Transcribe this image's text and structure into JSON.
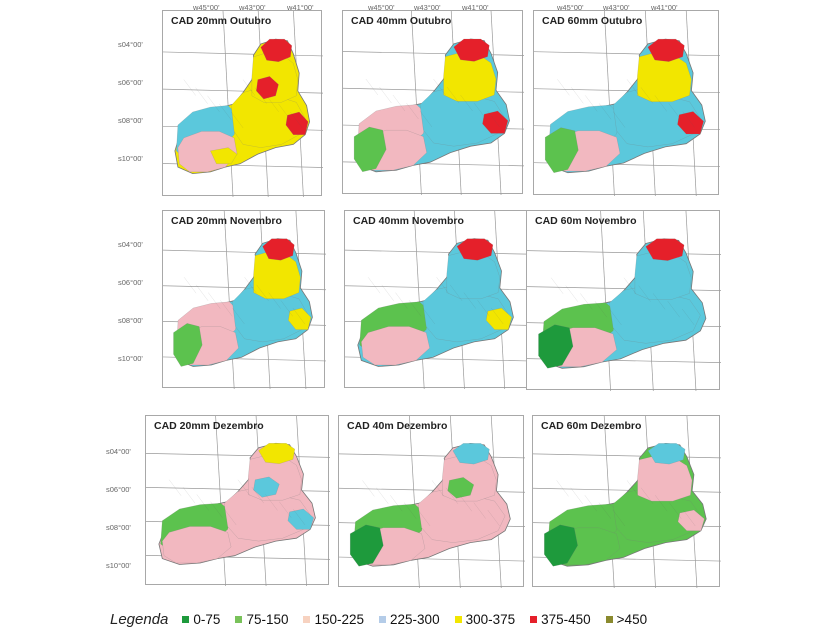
{
  "classes": [
    {
      "label": "0-75",
      "color": "#1e9a3c"
    },
    {
      "label": "75-150",
      "color": "#5cc24e"
    },
    {
      "label": "150-225",
      "color": "#f2b8c0"
    },
    {
      "label": "225-300",
      "color": "#5bc8dc"
    },
    {
      "label": "300-375",
      "color": "#f2e600"
    },
    {
      "label": "375-450",
      "color": "#e5202a"
    },
    {
      "label": ">450",
      "color": "#8a8a2e"
    }
  ],
  "legend": {
    "title": "Legenda",
    "items": [
      {
        "label": "0-75",
        "swatch_color": "#1e9a3c"
      },
      {
        "label": "75-150",
        "swatch_color": "#79c25a"
      },
      {
        "label": "150-225",
        "swatch_color": "#f7d2c0"
      },
      {
        "label": "225-300",
        "swatch_color": "#b4cce8"
      },
      {
        "label": "300-375",
        "swatch_color": "#f2e600"
      },
      {
        "label": "375-450",
        "swatch_color": "#e5202a"
      },
      {
        "label": ">450",
        "swatch_color": "#8a8a2e"
      }
    ]
  },
  "coordinates": {
    "longitudes": [
      "w45°00'",
      "w43°00'",
      "w41°00'"
    ],
    "latitudes": [
      "s04°00'",
      "s06°00'",
      "s08°00'",
      "s10°00'"
    ]
  },
  "panels": [
    {
      "title": "CAD 20mm   Outubro",
      "dominant": "300-375",
      "regions": [
        {
          "shape": "west",
          "class": "225-300"
        },
        {
          "shape": "southcore",
          "class": "150-225"
        },
        {
          "shape": "center",
          "class": "300-375"
        },
        {
          "shape": "north",
          "class": "300-375"
        },
        {
          "shape": "tip",
          "class": "375-450"
        },
        {
          "shape": "eastspot",
          "class": "375-450"
        },
        {
          "shape": "midspot",
          "class": "375-450"
        },
        {
          "shape": "southspot",
          "class": "300-375"
        }
      ]
    },
    {
      "title": "CAD 40mm   Outubro",
      "dominant": "225-300",
      "regions": [
        {
          "shape": "west",
          "class": "150-225"
        },
        {
          "shape": "southcore",
          "class": "150-225"
        },
        {
          "shape": "center",
          "class": "225-300"
        },
        {
          "shape": "north",
          "class": "300-375"
        },
        {
          "shape": "tip",
          "class": "375-450"
        },
        {
          "shape": "eastspot",
          "class": "375-450"
        },
        {
          "shape": "swpatch",
          "class": "75-150"
        }
      ]
    },
    {
      "title": "CAD 60mm   Outubro",
      "dominant": "225-300",
      "regions": [
        {
          "shape": "west",
          "class": "225-300"
        },
        {
          "shape": "southcore",
          "class": "150-225"
        },
        {
          "shape": "center",
          "class": "225-300"
        },
        {
          "shape": "north",
          "class": "300-375"
        },
        {
          "shape": "tip",
          "class": "375-450"
        },
        {
          "shape": "eastspot",
          "class": "375-450"
        },
        {
          "shape": "swpatch",
          "class": "75-150"
        }
      ]
    },
    {
      "title": "CAD 20mm  Novembro",
      "dominant": "225-300",
      "regions": [
        {
          "shape": "west",
          "class": "150-225"
        },
        {
          "shape": "southcore",
          "class": "150-225"
        },
        {
          "shape": "center",
          "class": "225-300"
        },
        {
          "shape": "north",
          "class": "300-375"
        },
        {
          "shape": "tip",
          "class": "375-450"
        },
        {
          "shape": "eastspot",
          "class": "300-375"
        },
        {
          "shape": "swpatch",
          "class": "75-150"
        }
      ]
    },
    {
      "title": "CAD 40mm  Novembro",
      "dominant": "225-300",
      "regions": [
        {
          "shape": "west",
          "class": "75-150"
        },
        {
          "shape": "southcore",
          "class": "150-225"
        },
        {
          "shape": "center",
          "class": "225-300"
        },
        {
          "shape": "north",
          "class": "225-300"
        },
        {
          "shape": "tip",
          "class": "375-450"
        },
        {
          "shape": "eastspot",
          "class": "300-375"
        }
      ]
    },
    {
      "title": "CAD 60m  Novembro",
      "dominant": "225-300",
      "regions": [
        {
          "shape": "west",
          "class": "75-150"
        },
        {
          "shape": "southcore",
          "class": "150-225"
        },
        {
          "shape": "center",
          "class": "225-300"
        },
        {
          "shape": "north",
          "class": "225-300"
        },
        {
          "shape": "tip",
          "class": "375-450"
        },
        {
          "shape": "swpatch",
          "class": "0-75"
        }
      ]
    },
    {
      "title": "CAD 20mm  Dezembro",
      "dominant": "150-225",
      "regions": [
        {
          "shape": "west",
          "class": "75-150"
        },
        {
          "shape": "southcore",
          "class": "150-225"
        },
        {
          "shape": "center",
          "class": "150-225"
        },
        {
          "shape": "north",
          "class": "150-225"
        },
        {
          "shape": "tip",
          "class": "300-375"
        },
        {
          "shape": "eastspot",
          "class": "225-300"
        },
        {
          "shape": "midspot",
          "class": "225-300"
        }
      ]
    },
    {
      "title": "CAD 40m  Dezembro",
      "dominant": "150-225",
      "regions": [
        {
          "shape": "west",
          "class": "75-150"
        },
        {
          "shape": "southcore",
          "class": "150-225"
        },
        {
          "shape": "center",
          "class": "150-225"
        },
        {
          "shape": "north",
          "class": "150-225"
        },
        {
          "shape": "tip",
          "class": "225-300"
        },
        {
          "shape": "midspot",
          "class": "75-150"
        },
        {
          "shape": "swpatch",
          "class": "0-75"
        }
      ]
    },
    {
      "title": "CAD 60m  Dezembro",
      "dominant": "75-150",
      "regions": [
        {
          "shape": "west",
          "class": "75-150"
        },
        {
          "shape": "southcore",
          "class": "75-150"
        },
        {
          "shape": "center",
          "class": "75-150"
        },
        {
          "shape": "north",
          "class": "150-225"
        },
        {
          "shape": "tip",
          "class": "225-300"
        },
        {
          "shape": "eastspot",
          "class": "150-225"
        },
        {
          "shape": "swpatch",
          "class": "0-75"
        }
      ]
    }
  ]
}
